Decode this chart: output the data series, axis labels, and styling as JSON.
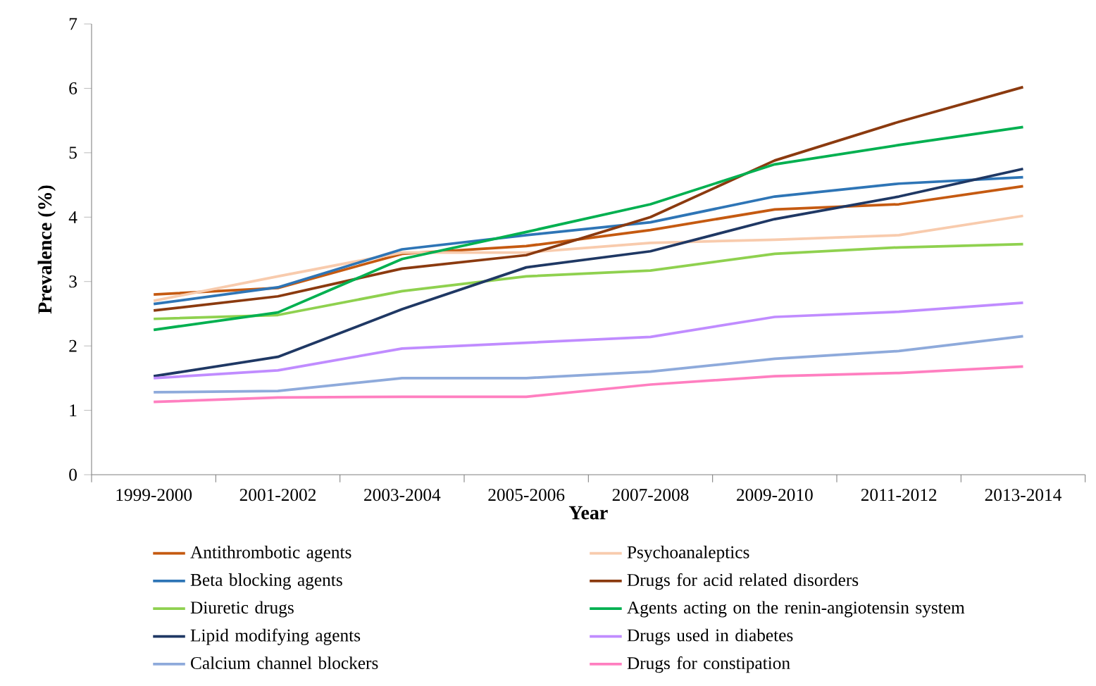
{
  "chart_data": {
    "type": "line",
    "xlabel": "Year",
    "ylabel": "Prevalence (%)",
    "categories": [
      "1999-2000",
      "2001-2002",
      "2003-2004",
      "2005-2006",
      "2007-2008",
      "2009-2010",
      "2011-2012",
      "2013-2014"
    ],
    "ylim": [
      0,
      7
    ],
    "yticks": [
      0,
      1,
      2,
      3,
      4,
      5,
      6,
      7
    ],
    "grid": false,
    "legend": "bottom",
    "marker": "none",
    "line_style": "solid",
    "series": [
      {
        "name": "Antithrombotic agents",
        "color": "#c55a11",
        "values": [
          2.8,
          2.9,
          3.43,
          3.55,
          3.8,
          4.12,
          4.2,
          4.48
        ]
      },
      {
        "name": "Psychoanaleptics",
        "color": "#f8cbad",
        "values": [
          2.7,
          3.08,
          3.45,
          3.45,
          3.6,
          3.65,
          3.72,
          4.02
        ]
      },
      {
        "name": "Beta blocking agents",
        "color": "#2e75b6",
        "values": [
          2.65,
          2.91,
          3.5,
          3.72,
          3.92,
          4.32,
          4.52,
          4.62
        ]
      },
      {
        "name": "Drugs for acid related disorders",
        "color": "#8b3a0f",
        "values": [
          2.55,
          2.77,
          3.2,
          3.41,
          4.0,
          4.88,
          5.48,
          6.02
        ]
      },
      {
        "name": "Diuretic drugs",
        "color": "#8fd14f",
        "values": [
          2.42,
          2.48,
          2.85,
          3.08,
          3.17,
          3.43,
          3.53,
          3.58
        ]
      },
      {
        "name": "Agents acting on the renin-angiotensin system",
        "color": "#00b050",
        "values": [
          2.25,
          2.52,
          3.35,
          3.77,
          4.2,
          4.82,
          5.12,
          5.4
        ]
      },
      {
        "name": "Lipid modifying agents",
        "color": "#1f3864",
        "values": [
          1.53,
          1.83,
          2.57,
          3.22,
          3.47,
          3.97,
          4.32,
          4.75
        ]
      },
      {
        "name": "Drugs used in diabetes",
        "color": "#c08cff",
        "values": [
          1.5,
          1.62,
          1.96,
          2.05,
          2.14,
          2.45,
          2.53,
          2.67
        ]
      },
      {
        "name": "Calcium channel blockers",
        "color": "#8eaadb",
        "values": [
          1.28,
          1.3,
          1.5,
          1.5,
          1.6,
          1.8,
          1.92,
          2.15
        ]
      },
      {
        "name": "Drugs for constipation",
        "color": "#ff7fc0",
        "values": [
          1.13,
          1.2,
          1.21,
          1.21,
          1.4,
          1.53,
          1.58,
          1.68
        ]
      }
    ]
  }
}
